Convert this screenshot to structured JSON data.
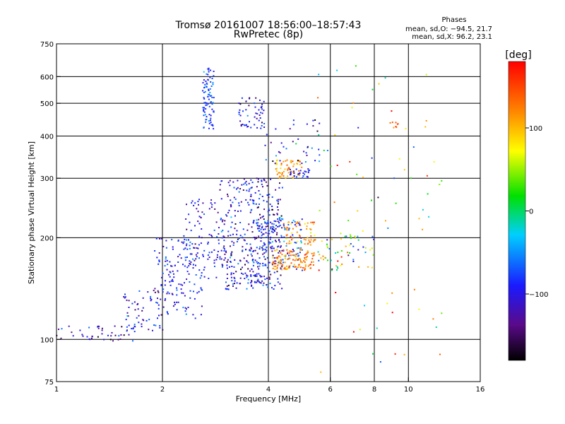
{
  "chart_data": {
    "type": "scatter",
    "title": "Tromsø 20161007 18:56:00–18:57:43",
    "subtitle": "RwPretec (8p)",
    "xlabel": "Frequency [MHz]",
    "ylabel": "Stationary phase Virtual Height [km]",
    "x_scale": "log",
    "y_scale": "log",
    "xlim": [
      1,
      16
    ],
    "ylim": [
      75,
      750
    ],
    "x_ticks": [
      1,
      2,
      4,
      6,
      8,
      10,
      16
    ],
    "x_tick_labels": [
      "1",
      "2",
      "4",
      "6",
      "8",
      "10",
      "16"
    ],
    "x_grid": [
      2,
      4,
      6,
      8,
      10
    ],
    "y_ticks": [
      75,
      100,
      200,
      300,
      400,
      500,
      600,
      750
    ],
    "y_tick_labels": [
      "75",
      "100",
      "200",
      "300",
      "400",
      "500",
      "600",
      "750"
    ],
    "y_grid": [
      100,
      200,
      300,
      400,
      500,
      600
    ],
    "stats": {
      "header": "Phases",
      "line_o": "mean, sd,O: −94.5, 21.7",
      "line_x": "mean, sd,X:  96.2, 23.1"
    },
    "colorbar": {
      "label": "[deg]",
      "range": [
        -180,
        180
      ],
      "ticks": [
        -100,
        0,
        100
      ],
      "tick_labels": [
        "−100",
        "0",
        "100"
      ]
    },
    "clusters": [
      {
        "fmin": 1.0,
        "fmax": 1.7,
        "hmin": 99,
        "hmax": 110,
        "n": 45,
        "phase": -115,
        "sd": 30
      },
      {
        "fmin": 1.55,
        "fmax": 2.1,
        "hmin": 105,
        "hmax": 140,
        "n": 60,
        "phase": -110,
        "sd": 25
      },
      {
        "fmin": 1.9,
        "fmax": 2.6,
        "hmin": 115,
        "hmax": 200,
        "n": 140,
        "phase": -100,
        "sd": 20
      },
      {
        "fmin": 2.3,
        "fmax": 2.9,
        "hmin": 150,
        "hmax": 260,
        "n": 90,
        "phase": -105,
        "sd": 22
      },
      {
        "fmin": 2.6,
        "fmax": 2.8,
        "hmin": 420,
        "hmax": 640,
        "n": 90,
        "phase": -85,
        "sd": 20
      },
      {
        "fmin": 2.9,
        "fmax": 4.4,
        "hmin": 140,
        "hmax": 300,
        "n": 420,
        "phase": -110,
        "sd": 30
      },
      {
        "fmin": 3.3,
        "fmax": 3.9,
        "hmin": 420,
        "hmax": 520,
        "n": 55,
        "phase": -110,
        "sd": 25
      },
      {
        "fmin": 3.7,
        "fmax": 5.0,
        "hmin": 160,
        "hmax": 230,
        "n": 120,
        "phase": -85,
        "sd": 30
      },
      {
        "fmin": 4.1,
        "fmax": 5.4,
        "hmin": 160,
        "hmax": 185,
        "n": 120,
        "phase": 115,
        "sd": 20
      },
      {
        "fmin": 4.4,
        "fmax": 5.5,
        "hmin": 190,
        "hmax": 225,
        "n": 60,
        "phase": 120,
        "sd": 25
      },
      {
        "fmin": 4.2,
        "fmax": 5.0,
        "hmin": 300,
        "hmax": 340,
        "n": 60,
        "phase": 110,
        "sd": 20
      },
      {
        "fmin": 4.6,
        "fmax": 5.3,
        "hmin": 300,
        "hmax": 320,
        "n": 30,
        "phase": -105,
        "sd": 15
      },
      {
        "fmin": 3.9,
        "fmax": 5.6,
        "hmin": 330,
        "hmax": 450,
        "n": 40,
        "phase": -95,
        "sd": 40
      },
      {
        "fmin": 5.5,
        "fmax": 8.0,
        "hmin": 160,
        "hmax": 210,
        "n": 60,
        "phase": 40,
        "sd": 90
      },
      {
        "fmin": 5.5,
        "fmax": 12.5,
        "hmin": 80,
        "hmax": 650,
        "n": 70,
        "phase": 60,
        "sd": 90
      },
      {
        "fmin": 8.8,
        "fmax": 9.4,
        "hmin": 420,
        "hmax": 440,
        "n": 8,
        "phase": 140,
        "sd": 15
      }
    ]
  }
}
